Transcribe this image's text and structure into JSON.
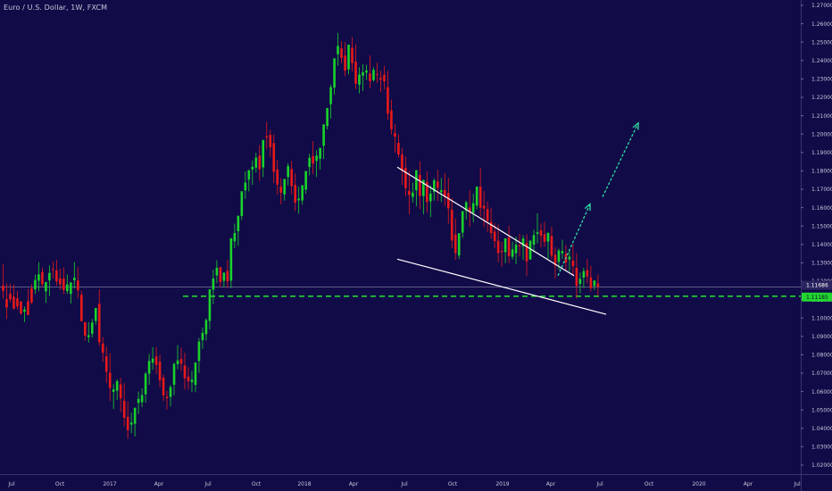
{
  "header": {
    "symbol_title": "Euro / U.S. Dollar, 1W, FXCM"
  },
  "colors": {
    "background": "#110b48",
    "up_candle": "#19d32a",
    "down_candle": "#e81919",
    "price_line": "#b8b8cc",
    "support_line": "#22d62f",
    "wedge_line": "#ffffff",
    "projection_arrow": "#2fe0a3",
    "axis_text": "#c8c8d8"
  },
  "chart_data": {
    "type": "candlestick",
    "title": "Euro / U.S. Dollar, 1W, FXCM",
    "interval": "1W",
    "y_axis_ticks": [
      "1.27000",
      "1.26000",
      "1.25000",
      "1.24000",
      "1.23000",
      "1.22000",
      "1.21000",
      "1.20000",
      "1.19000",
      "1.18000",
      "1.17000",
      "1.16000",
      "1.15000",
      "1.14000",
      "1.13000",
      "1.12000",
      "1.11000",
      "1.10000",
      "1.09000",
      "1.08000",
      "1.07000",
      "1.06000",
      "1.05000",
      "1.04000",
      "1.03000",
      "1.02000"
    ],
    "y_range": [
      1.015,
      1.275
    ],
    "x_axis_labels": [
      "Jul",
      "Oct",
      "2017",
      "Apr",
      "Jul",
      "Oct",
      "2018",
      "Apr",
      "Jul",
      "Oct",
      "2019",
      "Apr",
      "Jul",
      "Oct",
      "2020",
      "Apr",
      "Jul"
    ],
    "last_price_label": "1.11686",
    "support_price_label": "1.11185",
    "last_price": 1.11686,
    "support_price": 1.11185,
    "wedge": {
      "upper": [
        [
          "2018-07",
          1.182
        ],
        [
          "2019-06",
          1.123
        ]
      ],
      "lower": [
        [
          "2018-07",
          1.132
        ],
        [
          "2019-08",
          1.102
        ]
      ]
    },
    "projection": [
      [
        "2019-05",
        1.123
      ],
      [
        "2019-07",
        1.162
      ],
      [
        "2019-10",
        1.206
      ]
    ],
    "candles": [
      [
        1.1177,
        1.1291,
        1.1147,
        1.1105
      ],
      [
        1.1102,
        1.1187,
        1.1057,
        1.0994
      ],
      [
        1.1132,
        1.1186,
        1.1101,
        1.1085
      ],
      [
        1.1116,
        1.1182,
        1.1051,
        1.1046
      ],
      [
        1.1107,
        1.1146,
        1.1063,
        1.1046
      ],
      [
        1.1091,
        1.1091,
        1.1025,
        1.1016
      ],
      [
        1.1034,
        1.1062,
        1.1046,
        1.0978
      ],
      [
        1.1091,
        1.1158,
        1.1016,
        1.1016
      ],
      [
        1.1161,
        1.1184,
        1.1084,
        1.1075
      ],
      [
        1.1156,
        1.1236,
        1.1207,
        1.1131
      ],
      [
        1.1203,
        1.1303,
        1.1237,
        1.1145
      ],
      [
        1.125,
        1.1273,
        1.1185,
        1.1168
      ],
      [
        1.1145,
        1.1194,
        1.1195,
        1.1082
      ],
      [
        1.1204,
        1.1286,
        1.1245,
        1.1119
      ],
      [
        1.1266,
        1.1307,
        1.1263,
        1.1215
      ],
      [
        1.1258,
        1.1317,
        1.1199,
        1.1176
      ],
      [
        1.1215,
        1.1269,
        1.1183,
        1.1153
      ],
      [
        1.1214,
        1.1276,
        1.1152,
        1.1129
      ],
      [
        1.1146,
        1.1237,
        1.1183,
        1.1131
      ],
      [
        1.1131,
        1.1177,
        1.1194,
        1.1079
      ],
      [
        1.1205,
        1.1304,
        1.1219,
        1.116
      ],
      [
        1.1204,
        1.1276,
        1.115,
        1.1107
      ],
      [
        1.1126,
        1.1148,
        1.0983,
        1.0981
      ],
      [
        1.0977,
        1.0978,
        1.0904,
        1.0876
      ],
      [
        1.0896,
        1.0978,
        1.0906,
        1.0866
      ],
      [
        1.0915,
        1.0995,
        1.0975,
        1.0894
      ],
      [
        1.0984,
        1.1034,
        1.1054,
        1.0964
      ],
      [
        1.1077,
        1.1155,
        1.0868,
        1.0848
      ],
      [
        1.0861,
        1.0896,
        1.0811,
        1.0762
      ],
      [
        1.0792,
        1.0844,
        1.0707,
        1.0646
      ],
      [
        1.0702,
        1.0809,
        1.0619,
        1.0549
      ],
      [
        1.0598,
        1.0641,
        1.0612,
        1.0505
      ],
      [
        1.0605,
        1.0667,
        1.0656,
        1.0554
      ],
      [
        1.0639,
        1.0675,
        1.0563,
        1.0489
      ],
      [
        1.055,
        1.0645,
        1.0457,
        1.041
      ],
      [
        1.0463,
        1.0546,
        1.039,
        1.0342
      ],
      [
        1.042,
        1.0486,
        1.0431,
        1.0374
      ],
      [
        1.0425,
        1.0485,
        1.0512,
        1.0356
      ],
      [
        1.0538,
        1.06,
        1.056,
        1.0478
      ],
      [
        1.0542,
        1.0618,
        1.0581,
        1.0515
      ],
      [
        1.0585,
        1.0706,
        1.0698,
        1.0539
      ],
      [
        1.0697,
        1.0803,
        1.0767,
        1.0637
      ],
      [
        1.0757,
        1.0842,
        1.0779,
        1.0718
      ],
      [
        1.0791,
        1.0842,
        1.0745,
        1.0696
      ],
      [
        1.0763,
        1.0801,
        1.0661,
        1.0623
      ],
      [
        1.0676,
        1.0693,
        1.0579,
        1.0549
      ],
      [
        1.0572,
        1.0604,
        1.0564,
        1.0503
      ],
      [
        1.0571,
        1.0636,
        1.0624,
        1.052
      ],
      [
        1.0637,
        1.0757,
        1.075,
        1.058
      ],
      [
        1.0749,
        1.0853,
        1.0769,
        1.0722
      ],
      [
        1.0777,
        1.0839,
        1.0751,
        1.0712
      ],
      [
        1.0742,
        1.0811,
        1.0672,
        1.0611
      ],
      [
        1.0681,
        1.0733,
        1.0656,
        1.061
      ],
      [
        1.0651,
        1.0712,
        1.0665,
        1.0596
      ],
      [
        1.0636,
        1.0718,
        1.0758,
        1.0596
      ],
      [
        1.0766,
        1.0891,
        1.0872,
        1.0702
      ],
      [
        1.0879,
        1.0948,
        1.0919,
        1.0832
      ],
      [
        1.0912,
        1.0998,
        1.0989,
        1.0877
      ],
      [
        1.0984,
        1.1028,
        1.1156,
        1.0937
      ],
      [
        1.1154,
        1.1263,
        1.1215,
        1.1075
      ],
      [
        1.1231,
        1.1314,
        1.1273,
        1.1189
      ],
      [
        1.1276,
        1.1279,
        1.1195,
        1.1167
      ],
      [
        1.1202,
        1.1223,
        1.1247,
        1.1167
      ],
      [
        1.1257,
        1.1314,
        1.1199,
        1.1162
      ],
      [
        1.1203,
        1.1289,
        1.1434,
        1.1163
      ],
      [
        1.1417,
        1.1513,
        1.1462,
        1.1379
      ],
      [
        1.1472,
        1.1537,
        1.1556,
        1.1392
      ],
      [
        1.1555,
        1.1594,
        1.1689,
        1.1533
      ],
      [
        1.1694,
        1.1796,
        1.1736,
        1.1647
      ],
      [
        1.1752,
        1.1774,
        1.1804,
        1.1688
      ],
      [
        1.1807,
        1.1857,
        1.1823,
        1.1723
      ],
      [
        1.1817,
        1.1899,
        1.1872,
        1.1791
      ],
      [
        1.1883,
        1.194,
        1.1809,
        1.1746
      ],
      [
        1.1819,
        1.1844,
        1.1968,
        1.1766
      ],
      [
        1.1989,
        1.2066,
        1.1982,
        1.1917
      ],
      [
        1.1996,
        1.2023,
        1.1928,
        1.1875
      ],
      [
        1.1951,
        1.1999,
        1.1794,
        1.1734
      ],
      [
        1.1808,
        1.1857,
        1.1725,
        1.167
      ],
      [
        1.1715,
        1.176,
        1.1681,
        1.1618
      ],
      [
        1.1672,
        1.1738,
        1.1756,
        1.1638
      ],
      [
        1.1767,
        1.1842,
        1.1826,
        1.1721
      ],
      [
        1.1811,
        1.1854,
        1.1717,
        1.1672
      ],
      [
        1.1724,
        1.1787,
        1.1628,
        1.1581
      ],
      [
        1.164,
        1.1716,
        1.1649,
        1.1567
      ],
      [
        1.1639,
        1.1716,
        1.1722,
        1.1616
      ],
      [
        1.1698,
        1.1756,
        1.1799,
        1.1676
      ],
      [
        1.1821,
        1.1892,
        1.1871,
        1.1776
      ],
      [
        1.188,
        1.1962,
        1.184,
        1.1782
      ],
      [
        1.1854,
        1.1913,
        1.1883,
        1.1767
      ],
      [
        1.1866,
        1.1906,
        1.1925,
        1.1807
      ],
      [
        1.1937,
        1.2021,
        1.2053,
        1.1865
      ],
      [
        1.2044,
        1.2122,
        1.2142,
        1.2025
      ],
      [
        1.2163,
        1.2269,
        1.2255,
        1.2085
      ],
      [
        1.2252,
        1.2347,
        1.2412,
        1.2214
      ],
      [
        1.2434,
        1.2551,
        1.2479,
        1.2372
      ],
      [
        1.2466,
        1.2505,
        1.2414,
        1.2385
      ],
      [
        1.2427,
        1.2499,
        1.2345,
        1.2315
      ],
      [
        1.2352,
        1.2438,
        1.2486,
        1.2325
      ],
      [
        1.2469,
        1.2527,
        1.2386,
        1.234
      ],
      [
        1.2394,
        1.2489,
        1.2274,
        1.2245
      ],
      [
        1.2269,
        1.2364,
        1.2324,
        1.2221
      ],
      [
        1.2318,
        1.2379,
        1.2336,
        1.2234
      ],
      [
        1.2334,
        1.2376,
        1.2346,
        1.2294
      ],
      [
        1.233,
        1.2428,
        1.2288,
        1.225
      ],
      [
        1.2294,
        1.2363,
        1.2349,
        1.2285
      ],
      [
        1.2327,
        1.2388,
        1.2323,
        1.2278
      ],
      [
        1.2306,
        1.2345,
        1.2296,
        1.2228
      ],
      [
        1.2322,
        1.2371,
        1.2287,
        1.2243
      ],
      [
        1.2255,
        1.2344,
        1.2111,
        1.2078
      ],
      [
        1.2129,
        1.2188,
        1.2027,
        1.1998
      ],
      [
        1.2005,
        1.2055,
        1.1986,
        1.1899
      ],
      [
        1.1953,
        1.1999,
        1.1889,
        1.1872
      ],
      [
        1.1889,
        1.1924,
        1.1801,
        1.1724
      ],
      [
        1.1817,
        1.1878,
        1.1706,
        1.1662
      ],
      [
        1.1691,
        1.1801,
        1.1669,
        1.1564
      ],
      [
        1.1658,
        1.1736,
        1.1682,
        1.1628
      ],
      [
        1.1694,
        1.1758,
        1.1804,
        1.1608
      ],
      [
        1.1778,
        1.1853,
        1.1664,
        1.1592
      ],
      [
        1.1663,
        1.1744,
        1.1751,
        1.1564
      ],
      [
        1.1739,
        1.1797,
        1.1631,
        1.1573
      ],
      [
        1.1635,
        1.1722,
        1.1676,
        1.1548
      ],
      [
        1.1687,
        1.1758,
        1.1749,
        1.1638
      ],
      [
        1.1742,
        1.1807,
        1.1707,
        1.1635
      ],
      [
        1.1684,
        1.1761,
        1.1695,
        1.163
      ],
      [
        1.1696,
        1.1788,
        1.1658,
        1.161
      ],
      [
        1.168,
        1.1762,
        1.1596,
        1.1512
      ],
      [
        1.1589,
        1.1654,
        1.1421,
        1.138
      ],
      [
        1.1454,
        1.1542,
        1.1353,
        1.1317
      ],
      [
        1.134,
        1.1416,
        1.1461,
        1.1321
      ],
      [
        1.1464,
        1.1523,
        1.1581,
        1.1436
      ],
      [
        1.1582,
        1.1636,
        1.1629,
        1.1535
      ],
      [
        1.1601,
        1.1696,
        1.1573,
        1.1497
      ],
      [
        1.1573,
        1.1676,
        1.1624,
        1.152
      ],
      [
        1.1611,
        1.1682,
        1.1715,
        1.1592
      ],
      [
        1.1714,
        1.1817,
        1.1599,
        1.1552
      ],
      [
        1.161,
        1.1691,
        1.1595,
        1.1494
      ],
      [
        1.1592,
        1.1633,
        1.1528,
        1.1467
      ],
      [
        1.1523,
        1.1599,
        1.1462,
        1.1432
      ],
      [
        1.147,
        1.1515,
        1.1418,
        1.1379
      ],
      [
        1.142,
        1.1509,
        1.1353,
        1.1302
      ],
      [
        1.1365,
        1.1414,
        1.1359,
        1.1279
      ],
      [
        1.1358,
        1.1396,
        1.1433,
        1.1298
      ],
      [
        1.1439,
        1.1503,
        1.1336,
        1.1298
      ],
      [
        1.1333,
        1.1415,
        1.1373,
        1.1317
      ],
      [
        1.1352,
        1.1443,
        1.1399,
        1.1292
      ],
      [
        1.1395,
        1.1457,
        1.1389,
        1.1334
      ],
      [
        1.1391,
        1.145,
        1.1433,
        1.1316
      ],
      [
        1.1407,
        1.1456,
        1.1308,
        1.1229
      ],
      [
        1.1319,
        1.1377,
        1.1421,
        1.1316
      ],
      [
        1.1399,
        1.148,
        1.1451,
        1.1357
      ],
      [
        1.1457,
        1.1569,
        1.1466,
        1.1405
      ],
      [
        1.1477,
        1.1515,
        1.1447,
        1.1384
      ],
      [
        1.1455,
        1.1523,
        1.1414,
        1.1387
      ],
      [
        1.1416,
        1.1456,
        1.1464,
        1.1322
      ],
      [
        1.1446,
        1.1496,
        1.1339,
        1.1317
      ],
      [
        1.1344,
        1.1384,
        1.1286,
        1.1214
      ],
      [
        1.1305,
        1.1377,
        1.1367,
        1.1262
      ],
      [
        1.1352,
        1.1426,
        1.1364,
        1.1322
      ],
      [
        1.135,
        1.1397,
        1.1302,
        1.1256
      ],
      [
        1.1318,
        1.1363,
        1.1334,
        1.1252
      ],
      [
        1.1312,
        1.1403,
        1.1282,
        1.1232
      ],
      [
        1.1273,
        1.1353,
        1.1175,
        1.1106
      ],
      [
        1.1185,
        1.1247,
        1.1213,
        1.1135
      ],
      [
        1.1219,
        1.1273,
        1.1255,
        1.1164
      ],
      [
        1.1261,
        1.1321,
        1.1225,
        1.1188
      ],
      [
        1.1221,
        1.1284,
        1.1163,
        1.1143
      ],
      [
        1.1174,
        1.1197,
        1.1204,
        1.1153
      ],
      [
        1.1188,
        1.1236,
        1.1169,
        1.1119
      ]
    ]
  }
}
